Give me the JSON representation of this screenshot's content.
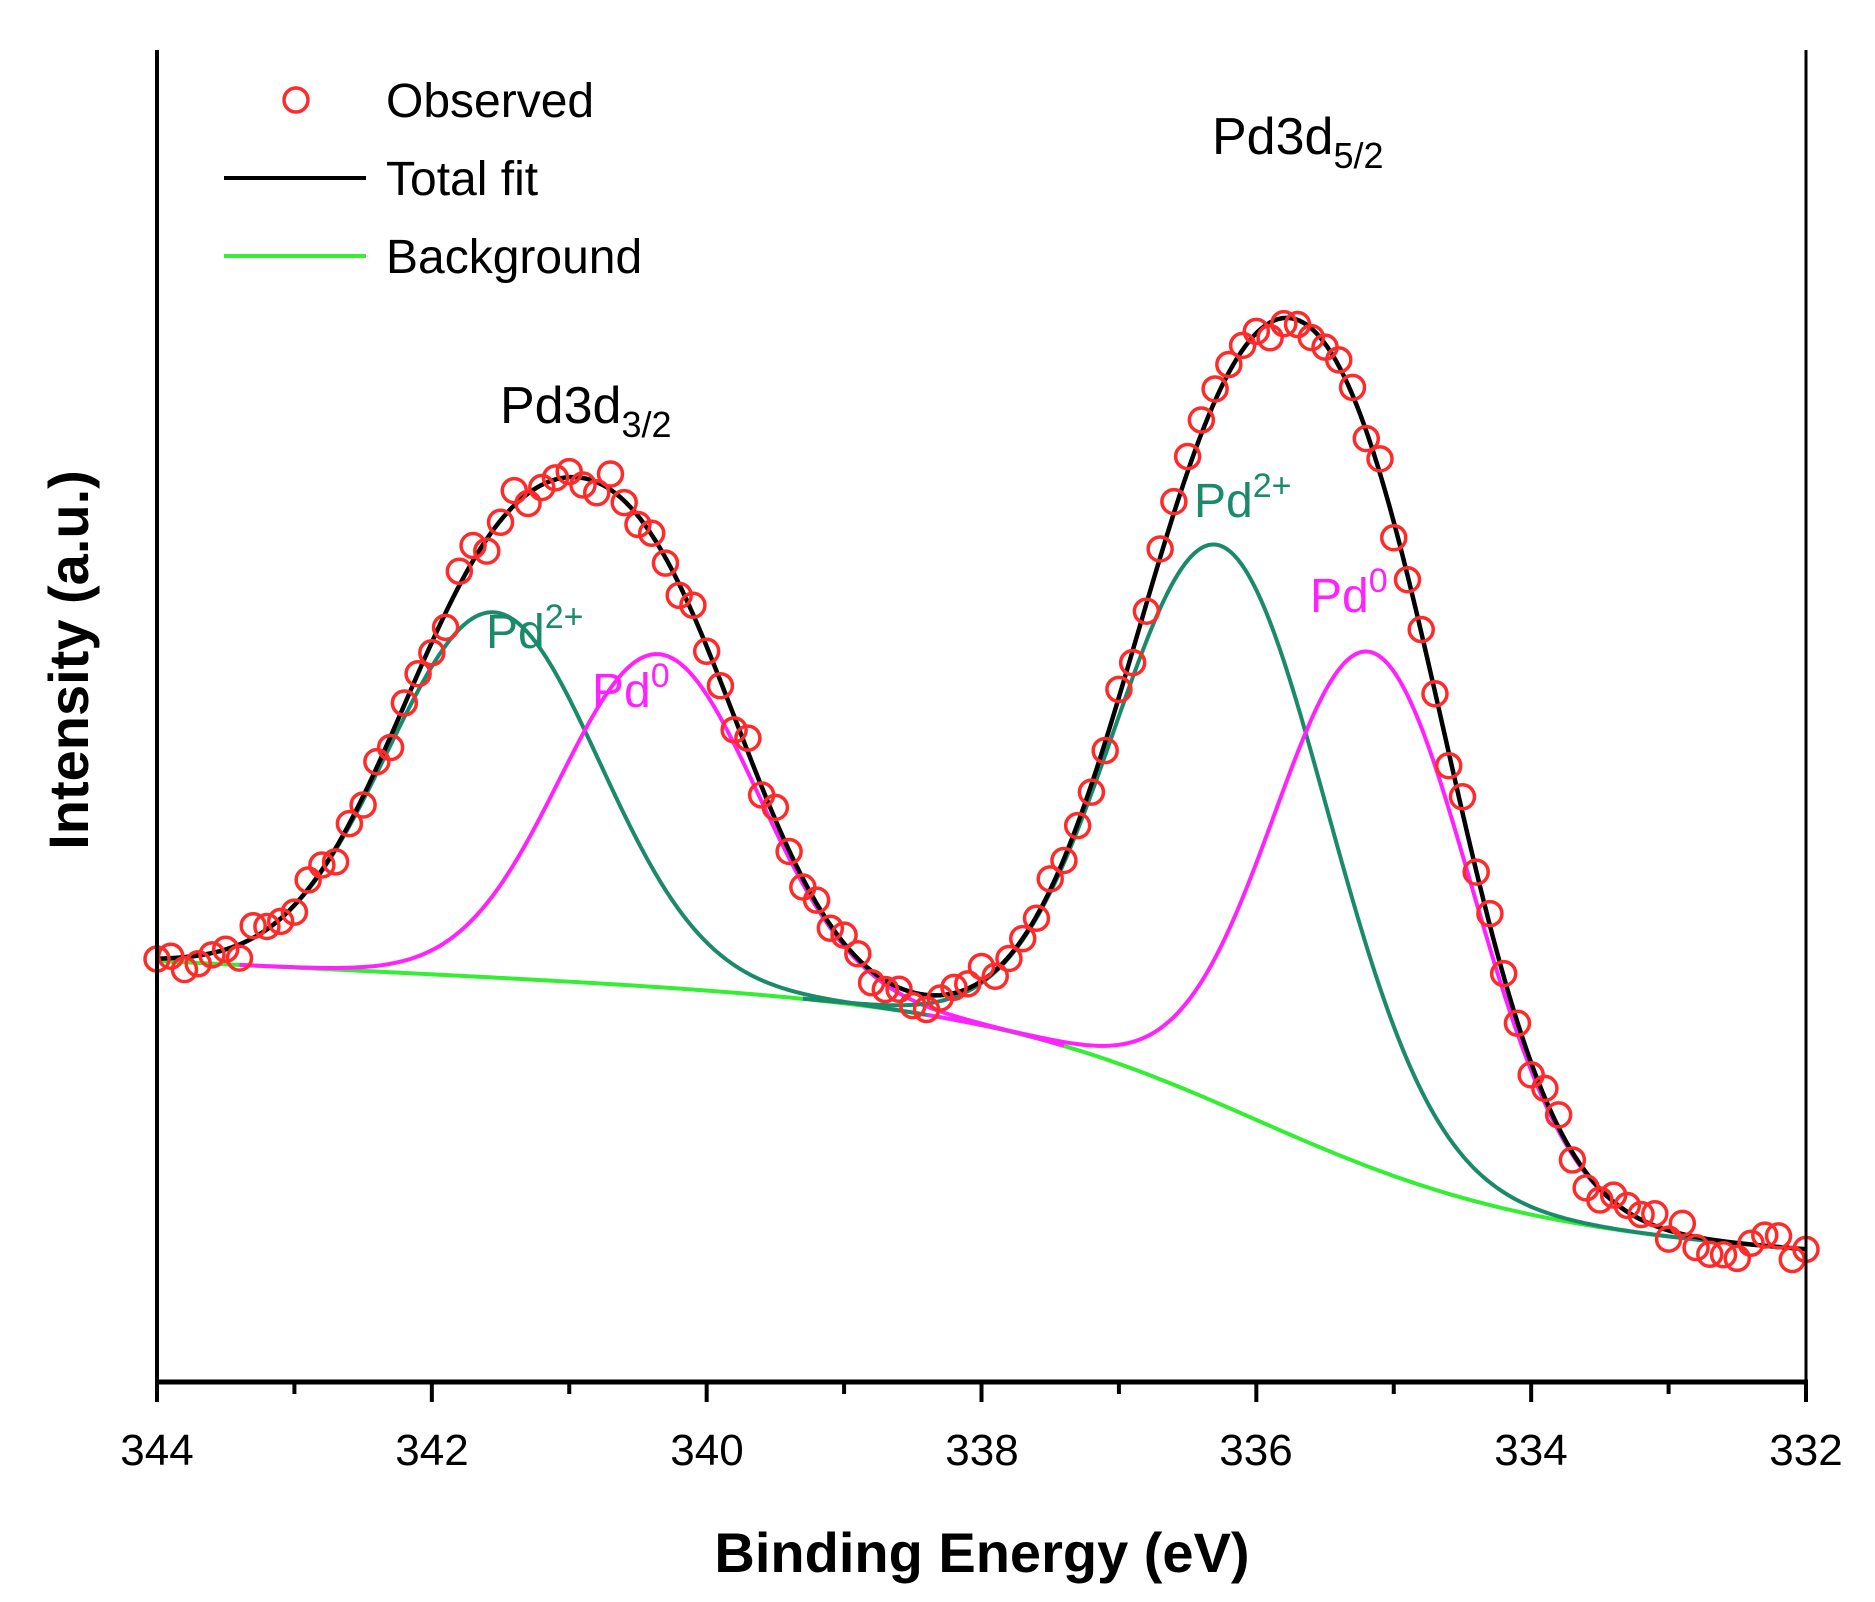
{
  "chart_data": {
    "type": "line",
    "title": "",
    "xlabel": "Binding Energy (eV)",
    "ylabel": "Intensity (a.u.)",
    "xlim": [
      344,
      332
    ],
    "ylim": [
      -0.12,
      1.12
    ],
    "x_reversed": true,
    "x_ticks": [
      344,
      342,
      340,
      338,
      336,
      334,
      332
    ],
    "x_tick_labels": [
      "344",
      "342",
      "340",
      "338",
      "336",
      "334",
      "332"
    ],
    "legend": {
      "position": "top-left",
      "entries": [
        {
          "label": "Observed",
          "marker": "circle",
          "color": "#ff2a2a"
        },
        {
          "label": "Total fit",
          "marker": "line",
          "color": "#000000"
        },
        {
          "label": "Background",
          "marker": "line",
          "color": "#33ee33"
        }
      ]
    },
    "peak_labels": [
      {
        "base": "Pd3d",
        "sub": "3/2",
        "x": 341.3,
        "y": 0.72,
        "color": "#000000"
      },
      {
        "base": "Pd3d",
        "sub": "5/2",
        "x": 335.4,
        "y": 0.92,
        "color": "#000000"
      }
    ],
    "component_labels": [
      {
        "base": "Pd",
        "sup": "2+",
        "x": 341.2,
        "y": 0.52,
        "color": "#1a8a6a"
      },
      {
        "base": "Pd",
        "sup": "0",
        "x": 340.3,
        "y": 0.47,
        "color": "#ff22ff"
      },
      {
        "base": "Pd",
        "sup": "2+",
        "x": 336.1,
        "y": 0.62,
        "color": "#1a8a6a"
      },
      {
        "base": "Pd",
        "sup": "0",
        "x": 335.3,
        "y": 0.57,
        "color": "#ff22ff"
      }
    ],
    "series": [
      {
        "name": "Background",
        "color": "#33ee33",
        "type": "sigmoid",
        "x_range": [
          344,
          332
        ],
        "high": 0.2,
        "low": 0.0,
        "center": 336,
        "width": 1.0,
        "slope_high": 0.006,
        "kind": "line"
      },
      {
        "name": "Pd2+ (3d3/2)",
        "color": "#1a8a6a",
        "type": "gaussian",
        "center": 341.55,
        "amplitude": 0.34,
        "sigma": 0.77,
        "x_range": [
          343.3,
          338.4
        ],
        "kind": "line"
      },
      {
        "name": "Pd0 (3d3/2)",
        "color": "#ff22ff",
        "type": "gaussian",
        "center": 340.35,
        "amplitude": 0.31,
        "sigma": 0.72,
        "x_range": [
          343.4,
          337.4
        ],
        "kind": "line"
      },
      {
        "name": "Pd2+ (3d5/2)",
        "color": "#1a8a6a",
        "type": "gaussian",
        "center": 336.25,
        "amplitude": 0.52,
        "sigma": 0.77,
        "x_range": [
          339.3,
          332.6
        ],
        "kind": "line"
      },
      {
        "name": "Pd0 (3d5/2)",
        "color": "#ff22ff",
        "type": "gaussian",
        "center": 335.15,
        "amplitude": 0.48,
        "sigma": 0.72,
        "x_range": [
          338.4,
          332.6
        ],
        "kind": "line"
      },
      {
        "name": "Total fit",
        "color": "#000000",
        "type": "sum",
        "x_range": [
          344,
          332
        ],
        "kind": "line"
      },
      {
        "name": "Observed",
        "color": "#ff2a2a",
        "type": "points",
        "x_range": [
          344,
          332
        ],
        "step": 0.1,
        "kind": "scatter"
      }
    ]
  }
}
